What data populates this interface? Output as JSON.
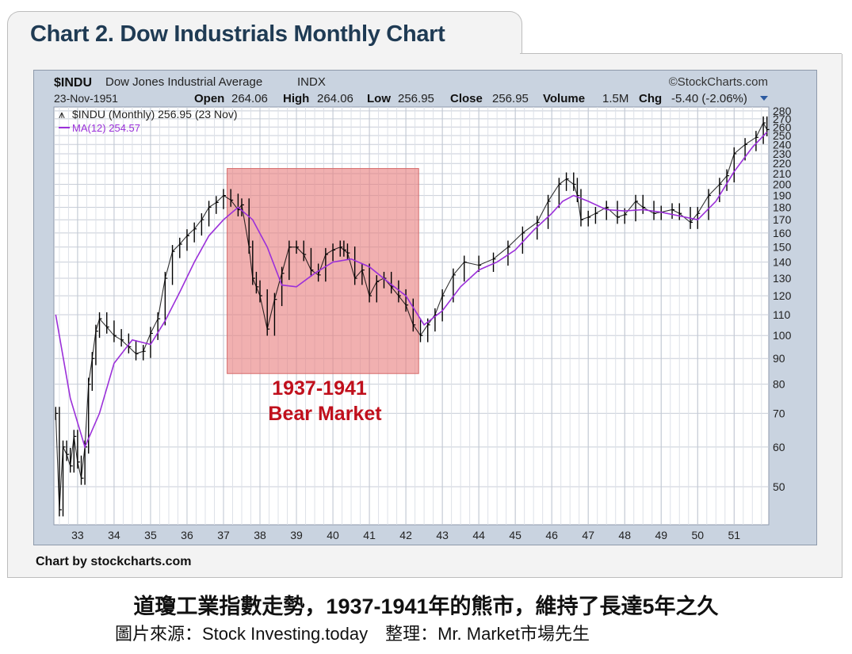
{
  "page": {
    "title": "Chart 2. Dow Industrials Monthly Chart",
    "credit": "Chart by stockcharts.com",
    "caption": "道瓊工業指數走勢，1937-1941年的熊市，維持了長達5年之久",
    "source": "圖片來源：Stock Investing.today　整理：Mr. Market市場先生"
  },
  "chart_header": {
    "symbol": "$INDU",
    "name": "Dow Jones Industrial Average",
    "exchange": "INDX",
    "watermark": "©StockCharts.com",
    "date": "23-Nov-1951",
    "open_label": "Open",
    "open": "264.06",
    "high_label": "High",
    "high": "264.06",
    "low_label": "Low",
    "low": "256.95",
    "close_label": "Close",
    "close": "256.95",
    "volume_label": "Volume",
    "volume": "1.5M",
    "chg_label": "Chg",
    "chg": "-5.40 (-2.06%)",
    "legend_price": "$INDU (Monthly) 256.95 (23 Nov)",
    "legend_ma": "MA(12) 254.57"
  },
  "colors": {
    "price": "#000000",
    "ma": "#9b30d9",
    "bear_fill": "#e88080",
    "bear_text": "#c0101c",
    "title": "#1f3b54"
  },
  "chart_data": {
    "type": "line",
    "y_scale": "log",
    "ylim": [
      42,
      285
    ],
    "xlim": [
      1932.35,
      1951.95
    ],
    "grid": true,
    "x_ticks": [
      {
        "value": 1933,
        "label": "33"
      },
      {
        "value": 1934,
        "label": "34"
      },
      {
        "value": 1935,
        "label": "35"
      },
      {
        "value": 1936,
        "label": "36"
      },
      {
        "value": 1937,
        "label": "37"
      },
      {
        "value": 1938,
        "label": "38"
      },
      {
        "value": 1939,
        "label": "39"
      },
      {
        "value": 1940,
        "label": "40"
      },
      {
        "value": 1941,
        "label": "41"
      },
      {
        "value": 1942,
        "label": "42"
      },
      {
        "value": 1943,
        "label": "43"
      },
      {
        "value": 1944,
        "label": "44"
      },
      {
        "value": 1945,
        "label": "45"
      },
      {
        "value": 1946,
        "label": "46"
      },
      {
        "value": 1947,
        "label": "47"
      },
      {
        "value": 1948,
        "label": "48"
      },
      {
        "value": 1949,
        "label": "49"
      },
      {
        "value": 1950,
        "label": "50"
      },
      {
        "value": 1951,
        "label": "51"
      }
    ],
    "y_ticks": [
      50,
      60,
      70,
      80,
      90,
      100,
      110,
      120,
      130,
      140,
      150,
      160,
      170,
      180,
      190,
      200,
      210,
      220,
      230,
      240,
      250,
      260,
      270,
      280
    ],
    "series": [
      {
        "name": "$INDU (Monthly)",
        "x": [
          1932.4,
          1932.5,
          1932.6,
          1932.7,
          1932.8,
          1932.9,
          1933.0,
          1933.1,
          1933.2,
          1933.3,
          1933.4,
          1933.5,
          1933.6,
          1933.8,
          1934.0,
          1934.2,
          1934.4,
          1934.6,
          1934.8,
          1935.0,
          1935.2,
          1935.4,
          1935.6,
          1935.8,
          1936.0,
          1936.2,
          1936.4,
          1936.6,
          1936.8,
          1937.0,
          1937.2,
          1937.4,
          1937.5,
          1937.7,
          1937.8,
          1937.9,
          1938.0,
          1938.2,
          1938.4,
          1938.6,
          1938.8,
          1939.0,
          1939.2,
          1939.4,
          1939.6,
          1939.8,
          1940.0,
          1940.2,
          1940.3,
          1940.4,
          1940.6,
          1940.8,
          1941.0,
          1941.2,
          1941.4,
          1941.6,
          1941.8,
          1942.0,
          1942.2,
          1942.4,
          1942.6,
          1942.8,
          1943.0,
          1943.3,
          1943.6,
          1944.0,
          1944.4,
          1944.8,
          1945.2,
          1945.6,
          1945.9,
          1946.2,
          1946.4,
          1946.6,
          1946.7,
          1946.8,
          1947.0,
          1947.2,
          1947.5,
          1947.8,
          1948.0,
          1948.3,
          1948.5,
          1948.8,
          1949.0,
          1949.3,
          1949.5,
          1949.8,
          1950.0,
          1950.3,
          1950.6,
          1950.8,
          1951.0,
          1951.3,
          1951.6,
          1951.8,
          1951.9
        ],
        "values": [
          70,
          45,
          60,
          58,
          55,
          63,
          56,
          52,
          60,
          80,
          90,
          102,
          108,
          104,
          100,
          98,
          95,
          92,
          93,
          101,
          108,
          130,
          147,
          152,
          158,
          163,
          170,
          180,
          184,
          190,
          186,
          178,
          182,
          150,
          130,
          125,
          120,
          103,
          118,
          133,
          150,
          150,
          145,
          135,
          132,
          145,
          148,
          150,
          148,
          146,
          130,
          135,
          120,
          128,
          130,
          125,
          120,
          115,
          105,
          100,
          105,
          110,
          120,
          132,
          140,
          138,
          142,
          150,
          160,
          168,
          185,
          200,
          205,
          200,
          190,
          170,
          172,
          175,
          180,
          172,
          174,
          185,
          180,
          175,
          176,
          178,
          175,
          168,
          175,
          190,
          200,
          208,
          230,
          240,
          248,
          265,
          257
        ]
      },
      {
        "name": "MA(12)",
        "x": [
          1932.4,
          1932.8,
          1933.2,
          1933.6,
          1934.0,
          1934.5,
          1935.0,
          1935.4,
          1935.8,
          1936.2,
          1936.6,
          1937.0,
          1937.4,
          1937.8,
          1938.2,
          1938.6,
          1939.0,
          1939.5,
          1940.0,
          1940.5,
          1941.0,
          1941.5,
          1942.0,
          1942.5,
          1943.0,
          1943.5,
          1944.0,
          1944.5,
          1945.0,
          1945.5,
          1946.0,
          1946.3,
          1946.6,
          1947.0,
          1947.5,
          1948.0,
          1948.5,
          1949.0,
          1949.5,
          1950.0,
          1950.5,
          1951.0,
          1951.5,
          1951.9
        ],
        "values": [
          110,
          75,
          60,
          70,
          88,
          98,
          96,
          107,
          122,
          140,
          158,
          170,
          180,
          170,
          150,
          126,
          125,
          133,
          140,
          142,
          137,
          128,
          120,
          105,
          112,
          125,
          135,
          140,
          148,
          162,
          175,
          185,
          190,
          185,
          178,
          177,
          178,
          176,
          173,
          170,
          185,
          212,
          237,
          254
        ]
      }
    ],
    "annotations": [
      {
        "text": "1937-1941",
        "x_start": 1937.1,
        "x_end": 1942.35,
        "y_low": 84,
        "y_high": 215
      },
      {
        "text": "Bear Market"
      }
    ]
  }
}
